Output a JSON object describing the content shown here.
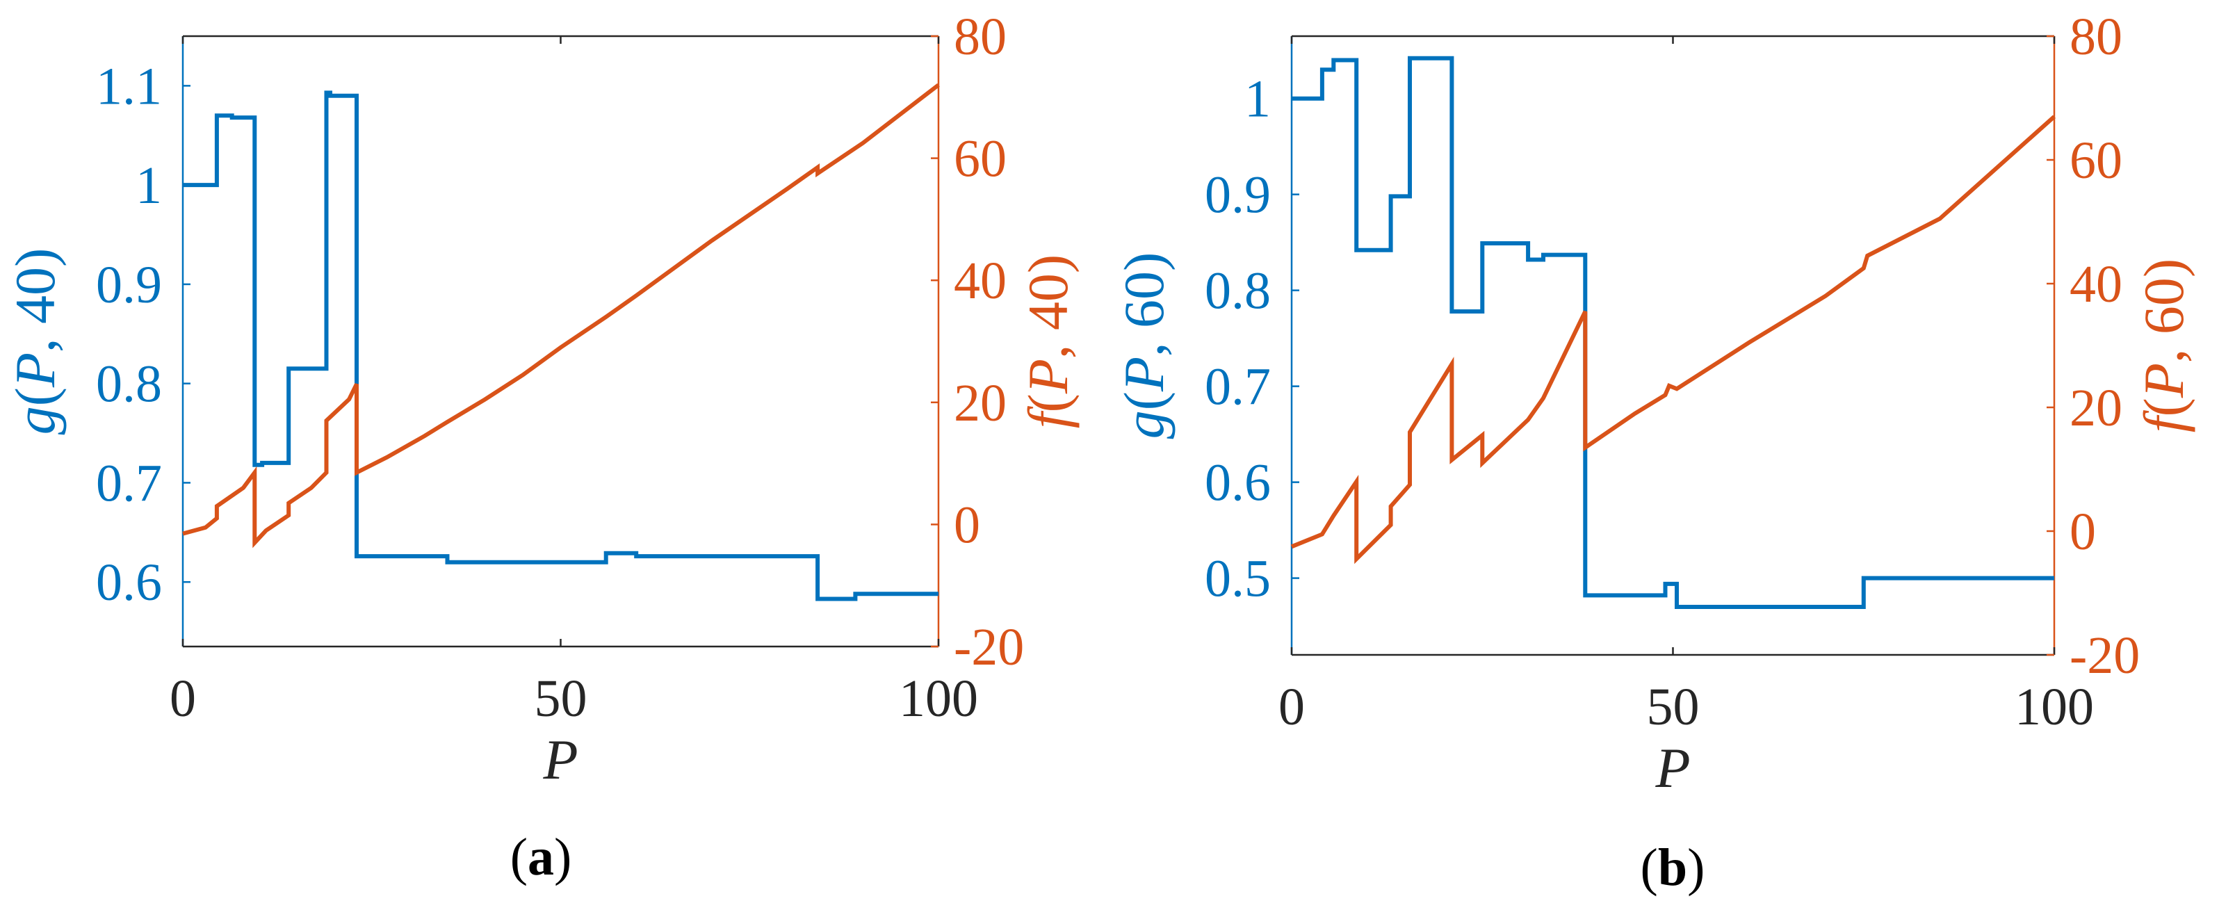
{
  "colors": {
    "left_axis": "#0072BD",
    "right_axis": "#D95319",
    "frame": "#262626"
  },
  "chart_data": [
    {
      "type": "line",
      "caption": {
        "open": "(",
        "letter": "a",
        "close": ")"
      },
      "xlabel": "P",
      "ylabel_left": "g(P, 40)",
      "ylabel_right": "f(P, 40)",
      "xlim": [
        0,
        100
      ],
      "ylim_left": [
        0.535,
        1.15
      ],
      "ylim_right": [
        -20,
        80
      ],
      "x_ticks": [
        "0",
        "50",
        "100"
      ],
      "x_tick_values": [
        0,
        50,
        100
      ],
      "yticks_left": [
        "0.6",
        "0.7",
        "0.8",
        "0.9",
        "1",
        "1.1"
      ],
      "ytick_values_left": [
        0.6,
        0.7,
        0.8,
        0.9,
        1.0,
        1.1
      ],
      "yticks_right": [
        "-20",
        "0",
        "20",
        "40",
        "60",
        "80"
      ],
      "ytick_values_right": [
        -20,
        0,
        20,
        40,
        60,
        80
      ],
      "grid": false,
      "series": [
        {
          "axis": "left",
          "step": true,
          "x": [
            0,
            4.5,
            4.5,
            6.5,
            6.5,
            9.5,
            9.5,
            10.5,
            10.5,
            14,
            14,
            19,
            19,
            19.5,
            19.5,
            23,
            23,
            35,
            35,
            56,
            56,
            60,
            60,
            84,
            84,
            89,
            89,
            100
          ],
          "y": [
            1.0,
            1.0,
            1.07,
            1.07,
            1.068,
            1.068,
            0.718,
            0.718,
            0.72,
            0.72,
            0.815,
            0.815,
            1.093,
            1.093,
            1.09,
            1.09,
            0.626,
            0.626,
            0.62,
            0.62,
            0.629,
            0.629,
            0.626,
            0.626,
            0.583,
            0.583,
            0.588,
            0.588
          ]
        },
        {
          "axis": "right",
          "step": false,
          "x": [
            0,
            3,
            4.5,
            4.5,
            8,
            9.5,
            9.5,
            11,
            14,
            14,
            17,
            19,
            19,
            22,
            23,
            23,
            27,
            32,
            35,
            40,
            45,
            50,
            56,
            60,
            70,
            80,
            84,
            84,
            90,
            100
          ],
          "y": [
            -1.5,
            -0.5,
            1.0,
            3.0,
            6.0,
            8.5,
            -3.0,
            -1.0,
            1.5,
            3.5,
            6.0,
            8.5,
            17.0,
            20.5,
            23.0,
            8.5,
            11.0,
            14.5,
            16.8,
            20.5,
            24.5,
            29.0,
            34.0,
            37.5,
            46.5,
            55.0,
            58.5,
            57.5,
            62.5,
            72.0
          ]
        }
      ]
    },
    {
      "type": "line",
      "caption": {
        "open": "(",
        "letter": "b",
        "close": ")"
      },
      "xlabel": "P",
      "ylabel_left": "g(P, 60)",
      "ylabel_right": "f(P, 60)",
      "xlim": [
        0,
        100
      ],
      "ylim_left": [
        0.42,
        1.065
      ],
      "ylim_right": [
        -20,
        80
      ],
      "x_ticks": [
        "0",
        "50",
        "100"
      ],
      "x_tick_values": [
        0,
        50,
        100
      ],
      "yticks_left": [
        "0.5",
        "0.6",
        "0.7",
        "0.8",
        "0.9",
        "1"
      ],
      "ytick_values_left": [
        0.5,
        0.6,
        0.7,
        0.8,
        0.9,
        1.0
      ],
      "yticks_right": [
        "-20",
        "0",
        "20",
        "40",
        "60",
        "80"
      ],
      "ytick_values_right": [
        -20,
        0,
        20,
        40,
        60,
        80
      ],
      "grid": false,
      "series": [
        {
          "axis": "left",
          "step": true,
          "x": [
            0,
            4,
            4,
            5.5,
            5.5,
            8.5,
            8.5,
            13,
            13,
            15.5,
            15.5,
            21,
            21,
            25,
            25,
            31,
            31,
            33,
            33,
            38.5,
            38.5,
            49,
            49,
            50.5,
            50.5,
            75,
            75,
            100
          ],
          "y": [
            1.0,
            1.0,
            1.03,
            1.03,
            1.04,
            1.04,
            0.842,
            0.842,
            0.898,
            0.898,
            1.042,
            1.042,
            0.778,
            0.778,
            0.849,
            0.849,
            0.832,
            0.832,
            0.837,
            0.837,
            0.482,
            0.482,
            0.494,
            0.494,
            0.47,
            0.47,
            0.5,
            0.5
          ]
        },
        {
          "axis": "right",
          "step": false,
          "x": [
            0,
            4,
            5.5,
            8.5,
            8.5,
            13,
            13,
            15.5,
            15.5,
            21,
            21,
            25,
            25,
            31,
            33,
            38.5,
            38.5,
            45,
            49,
            49.5,
            50.5,
            60,
            70,
            75,
            75.5,
            85,
            100
          ],
          "y": [
            -2.5,
            -0.5,
            2.5,
            8.0,
            -4.5,
            1.0,
            4.0,
            7.5,
            16.0,
            27.0,
            11.5,
            15.5,
            11.0,
            18.0,
            21.5,
            35.5,
            13.5,
            19.0,
            22.0,
            23.5,
            23.0,
            30.5,
            38.0,
            42.5,
            44.5,
            50.5,
            67.0
          ]
        }
      ]
    }
  ]
}
